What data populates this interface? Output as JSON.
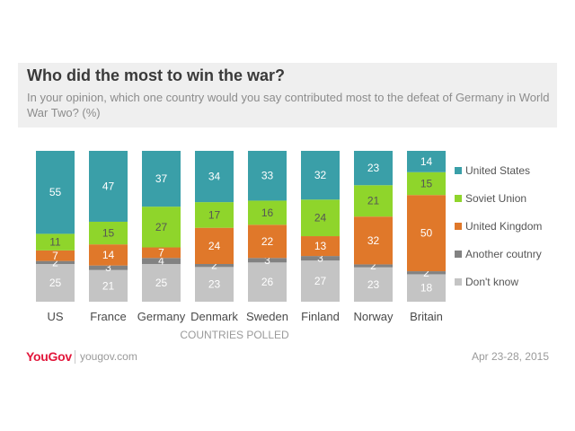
{
  "header": {
    "title": "Who did the most to win the war?",
    "subtitle": "In your opinion, which one country would you say contributed most to the defeat of Germany in World War Two? (%)"
  },
  "chart_data": {
    "type": "bar",
    "stacked": true,
    "xlabel": "COUNTRIES POLLED",
    "ylabel": "",
    "ylim": [
      0,
      100
    ],
    "grid": false,
    "legend_placement": "right",
    "categories": [
      "US",
      "France",
      "Germany",
      "Denmark",
      "Sweden",
      "Finland",
      "Norway",
      "Britain"
    ],
    "series": [
      {
        "name": "Don't know",
        "color": "#c4c4c4",
        "values": [
          25,
          21,
          25,
          23,
          26,
          27,
          23,
          18
        ]
      },
      {
        "name": "Another coutnry",
        "color": "#828282",
        "values": [
          2,
          3,
          4,
          2,
          3,
          3,
          2,
          2
        ]
      },
      {
        "name": "United Kingdom",
        "color": "#e0782a",
        "values": [
          7,
          14,
          7,
          24,
          22,
          13,
          32,
          50
        ]
      },
      {
        "name": "Soviet Union",
        "color": "#8fd52b",
        "values": [
          11,
          15,
          27,
          17,
          16,
          24,
          21,
          15
        ]
      },
      {
        "name": "United States",
        "color": "#3a9fa8",
        "values": [
          55,
          47,
          37,
          34,
          33,
          32,
          23,
          14
        ]
      }
    ],
    "legend_order": [
      "United States",
      "Soviet Union",
      "United Kingdom",
      "Another coutnry",
      "Don't know"
    ]
  },
  "footer": {
    "brand": "YouGov",
    "site": "yougov.com",
    "date": "Apr 23-28, 2015"
  }
}
